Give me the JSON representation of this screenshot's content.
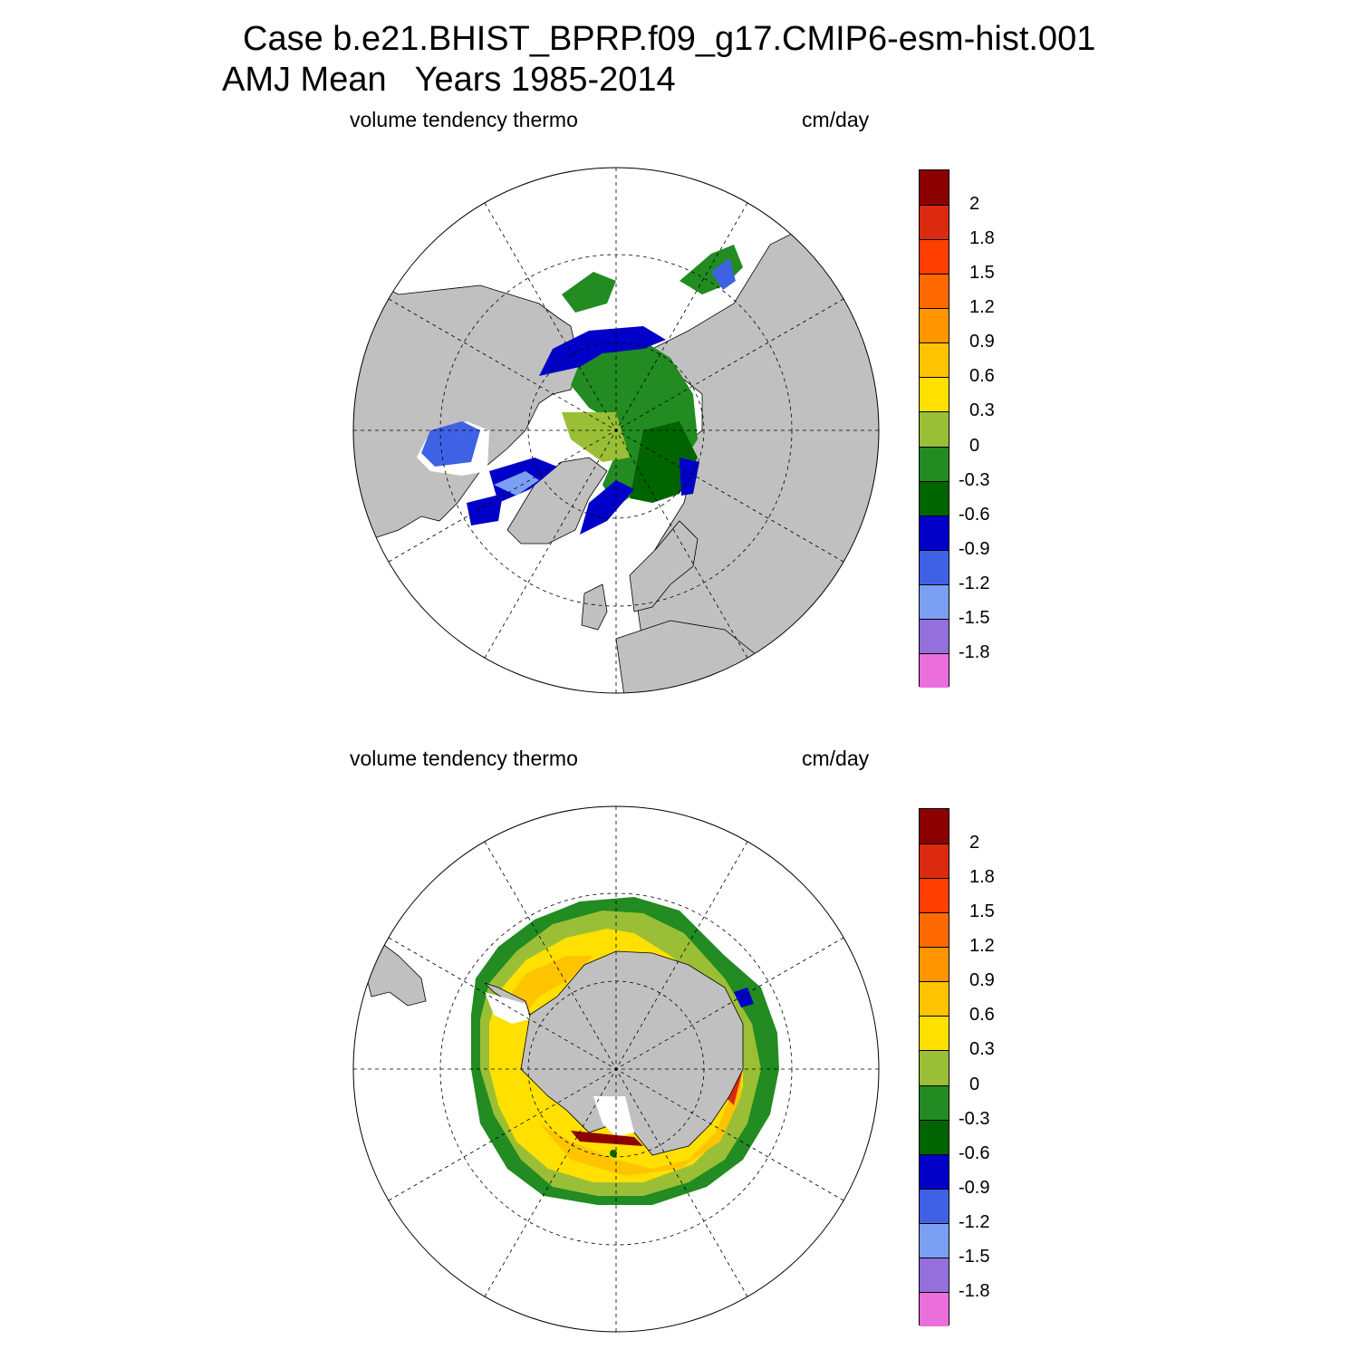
{
  "header": {
    "title_line1": "Case b.e21.BHIST_BPRP.f09_g17.CMIP6-esm-hist.001",
    "title_line2": "AMJ Mean   Years 1985-2014"
  },
  "panels": [
    {
      "id": "north",
      "left_label": "volume tendency thermo",
      "right_label": "cm/day"
    },
    {
      "id": "south",
      "left_label": "volume tendency thermo",
      "right_label": "cm/day"
    }
  ],
  "colorbar": {
    "colors": [
      "#ea6fdd",
      "#9370dc",
      "#7b9ff2",
      "#3f62e5",
      "#0000c8",
      "#006400",
      "#228b22",
      "#9abf36",
      "#ffe000",
      "#ffc400",
      "#ff9600",
      "#ff6a00",
      "#ff3e00",
      "#dc2a11",
      "#8c0000"
    ],
    "labels": [
      "-1.8",
      "-1.5",
      "-1.2",
      "-0.9",
      "-0.6",
      "-0.3",
      "0",
      "0.3",
      "0.6",
      "0.9",
      "1.2",
      "1.5",
      "1.8",
      "2"
    ]
  },
  "chart_data": [
    {
      "type": "heatmap",
      "projection": "north polar stereographic",
      "title": "Case b.e21.BHIST_BPRP.f09_g17.CMIP6-esm-hist.001 AMJ Mean Years 1985-2014",
      "left_label": "volume tendency thermo",
      "units": "cm/day",
      "contour_levels": [
        -1.8,
        -1.5,
        -1.2,
        -0.9,
        -0.6,
        -0.3,
        0,
        0.3,
        0.6,
        0.9,
        1.2,
        1.5,
        1.8,
        2
      ],
      "land_color": "#c0c0c0",
      "grid": true,
      "legend_position": "right"
    },
    {
      "type": "heatmap",
      "projection": "south polar stereographic",
      "left_label": "volume tendency thermo",
      "units": "cm/day",
      "contour_levels": [
        -1.8,
        -1.5,
        -1.2,
        -0.9,
        -0.6,
        -0.3,
        0,
        0.3,
        0.6,
        0.9,
        1.2,
        1.5,
        1.8,
        2
      ],
      "land_color": "#c0c0c0",
      "grid": true,
      "legend_position": "right"
    }
  ]
}
